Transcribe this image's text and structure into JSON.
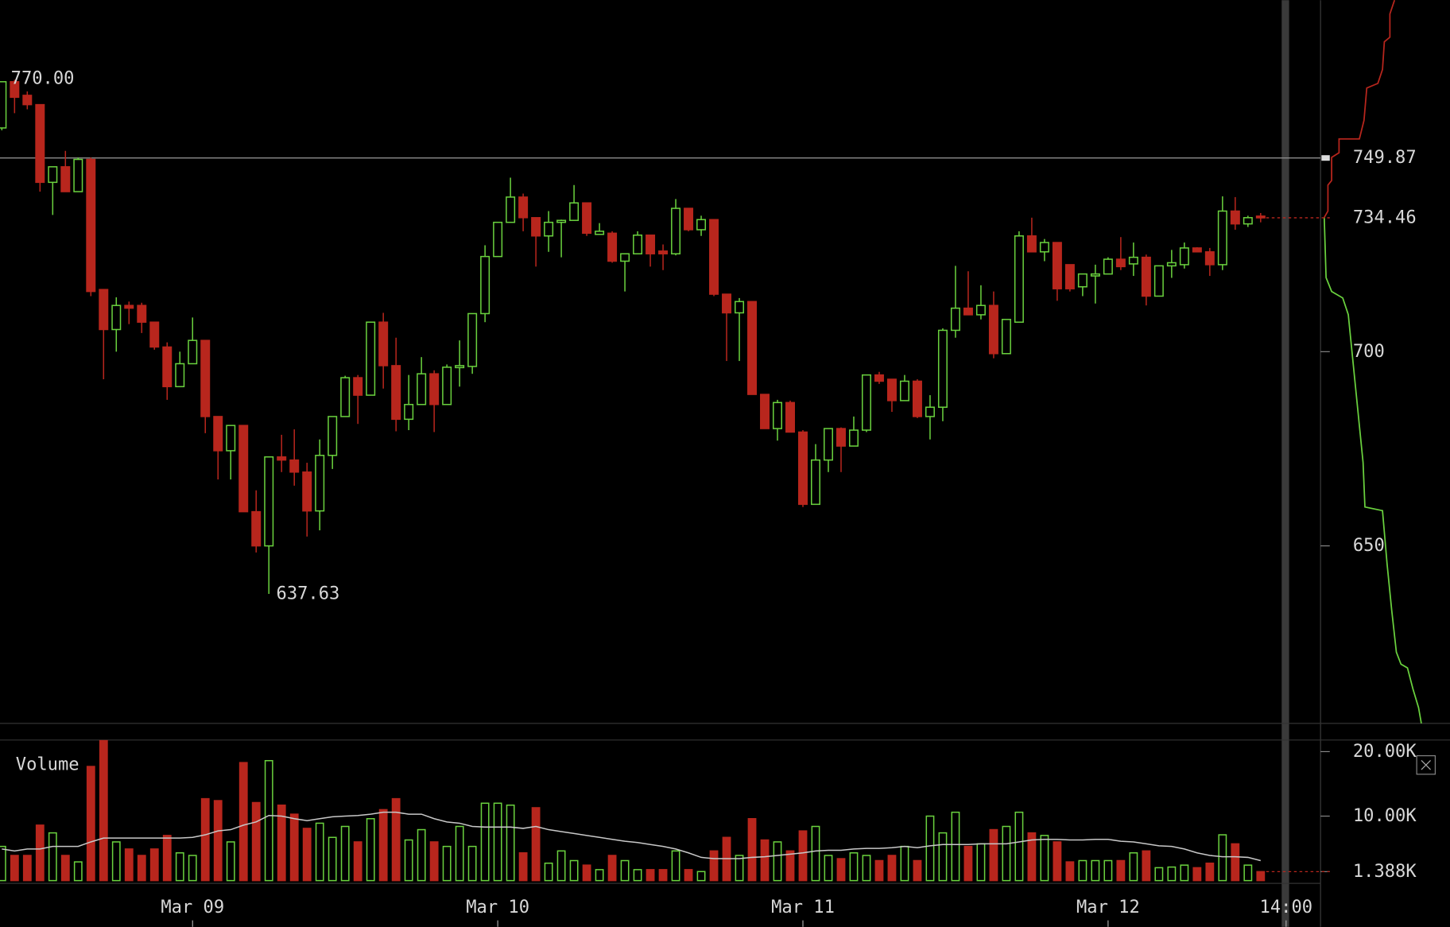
{
  "chart_data": [
    {
      "type": "candlestick",
      "x": [
        "Mar 08 09:00",
        "Mar 08 10:00",
        "Mar 08 11:00",
        "Mar 08 12:00",
        "Mar 08 13:00",
        "Mar 08 14:00",
        "Mar 08 15:00",
        "Mar 08 16:00",
        "Mar 08 17:00",
        "Mar 08 18:00",
        "Mar 08 19:00",
        "Mar 08 20:00",
        "Mar 08 21:00",
        "Mar 08 22:00",
        "Mar 08 23:00",
        "Mar 09 00:00",
        "Mar 09 01:00",
        "Mar 09 02:00",
        "Mar 09 03:00",
        "Mar 09 04:00",
        "Mar 09 05:00",
        "Mar 09 06:00",
        "Mar 09 07:00",
        "Mar 09 08:00",
        "Mar 09 09:00",
        "Mar 09 10:00",
        "Mar 09 11:00",
        "Mar 09 12:00",
        "Mar 09 13:00",
        "Mar 09 14:00",
        "Mar 09 15:00",
        "Mar 09 16:00",
        "Mar 09 17:00",
        "Mar 09 18:00",
        "Mar 09 19:00",
        "Mar 09 20:00",
        "Mar 09 21:00",
        "Mar 09 22:00",
        "Mar 09 23:00",
        "Mar 10 00:00",
        "Mar 10 01:00",
        "Mar 10 02:00",
        "Mar 10 03:00",
        "Mar 10 04:00",
        "Mar 10 05:00",
        "Mar 10 06:00",
        "Mar 10 07:00",
        "Mar 10 08:00",
        "Mar 10 09:00",
        "Mar 10 10:00",
        "Mar 10 11:00",
        "Mar 10 12:00",
        "Mar 10 13:00",
        "Mar 10 14:00",
        "Mar 10 15:00",
        "Mar 10 16:00",
        "Mar 10 17:00",
        "Mar 10 18:00",
        "Mar 10 19:00",
        "Mar 10 20:00",
        "Mar 10 21:00",
        "Mar 10 22:00",
        "Mar 10 23:00",
        "Mar 11 00:00",
        "Mar 11 01:00",
        "Mar 11 02:00",
        "Mar 11 03:00",
        "Mar 11 04:00",
        "Mar 11 05:00",
        "Mar 11 06:00",
        "Mar 11 07:00",
        "Mar 11 08:00",
        "Mar 11 09:00",
        "Mar 11 10:00",
        "Mar 11 11:00",
        "Mar 11 12:00",
        "Mar 11 13:00",
        "Mar 11 14:00",
        "Mar 11 15:00",
        "Mar 11 16:00",
        "Mar 11 17:00",
        "Mar 11 18:00",
        "Mar 11 19:00",
        "Mar 11 20:00",
        "Mar 11 21:00",
        "Mar 11 22:00",
        "Mar 11 23:00",
        "Mar 12 00:00",
        "Mar 12 01:00",
        "Mar 12 02:00",
        "Mar 12 03:00",
        "Mar 12 04:00",
        "Mar 12 05:00",
        "Mar 12 06:00",
        "Mar 12 07:00",
        "Mar 12 08:00",
        "Mar 12 09:00",
        "Mar 12 10:00",
        "Mar 12 11:00",
        "Mar 12 12:00"
      ],
      "open": [
        757.6,
        769.5,
        766,
        763.6,
        743.6,
        747.6,
        741.2,
        749.5,
        716,
        705.7,
        711.9,
        711.9,
        707.6,
        701.2,
        691,
        696.9,
        702.9,
        683.3,
        674.5,
        681,
        658.8,
        650,
        672.9,
        672.1,
        669,
        659,
        673.3,
        683.3,
        693.3,
        688.8,
        707.6,
        696.4,
        682.6,
        686.4,
        694.3,
        686.4,
        695.9,
        696.2,
        709.8,
        724.5,
        733.3,
        739.8,
        734.5,
        729.8,
        733.3,
        733.8,
        738.3,
        730.2,
        730.5,
        723.3,
        725.2,
        730,
        725.9,
        725.2,
        736.9,
        731.4,
        734,
        714.8,
        710,
        712.9,
        689,
        680.2,
        686.9,
        679.3,
        660.7,
        672.1,
        680.2,
        675.7,
        679.8,
        694,
        692.9,
        687.4,
        692.4,
        683.3,
        685.7,
        705.5,
        711.2,
        709.5,
        711.9,
        699.5,
        707.6,
        729.8,
        725.7,
        728.1,
        722.4,
        716.7,
        719.5,
        720,
        723.8,
        722.6,
        724.3,
        714.3,
        722.1,
        722.4,
        726.7,
        725.7,
        722.4,
        736.2,
        732.9,
        734.9
      ],
      "high": [
        769.5,
        770,
        767,
        763.6,
        747.6,
        751.7,
        750,
        750,
        716,
        714,
        712.9,
        712.6,
        707.6,
        702.4,
        700,
        708.8,
        702.9,
        683.3,
        681,
        681,
        664.3,
        672.9,
        678.6,
        680,
        671.4,
        677.4,
        683.3,
        693.8,
        694,
        707.6,
        710,
        703.6,
        694,
        698.6,
        695.2,
        696.7,
        702.9,
        709.8,
        727.4,
        733.3,
        744.8,
        740.7,
        734.5,
        736.2,
        734,
        742.9,
        738.3,
        733.1,
        731,
        725.2,
        731,
        730,
        727.6,
        739.3,
        736.9,
        735,
        734,
        714.8,
        713.8,
        712.9,
        689,
        687.6,
        687.4,
        679.8,
        676.2,
        680.2,
        680.5,
        683.3,
        694,
        694.8,
        692.9,
        694,
        692.9,
        688.8,
        706,
        722.1,
        720.7,
        717.1,
        715.5,
        708.3,
        731,
        734.5,
        729,
        728.1,
        722.4,
        720,
        722.4,
        724.3,
        729.5,
        728.1,
        725,
        722.1,
        726.2,
        728.1,
        726.9,
        726.7,
        740,
        739.8,
        735,
        735.7
      ],
      "low": [
        757,
        761.4,
        762.4,
        741.2,
        735.2,
        741.2,
        741.2,
        714.3,
        692.9,
        700,
        707.1,
        704.8,
        700.5,
        687.6,
        691,
        696.9,
        679,
        667.1,
        667.1,
        658.8,
        648.3,
        637.63,
        669,
        665.5,
        652.4,
        654,
        669.8,
        683.3,
        681.4,
        688.8,
        690.5,
        679.5,
        679.8,
        686.4,
        679.3,
        686.4,
        691,
        694.3,
        707.6,
        724.5,
        733.3,
        731,
        721.9,
        725.7,
        724.3,
        733.8,
        729.8,
        730.2,
        722.9,
        715.5,
        725.2,
        721.9,
        721,
        724.8,
        731,
        729.8,
        714.3,
        697.6,
        697.6,
        689,
        680.2,
        677.1,
        679.3,
        660,
        660.7,
        669,
        669,
        675.7,
        679.3,
        691.7,
        684.5,
        687.4,
        682.9,
        677.4,
        682.1,
        703.6,
        709.5,
        708.3,
        698.3,
        699.5,
        707.6,
        725.7,
        723.3,
        713.1,
        715.5,
        714.3,
        712.4,
        720,
        721,
        719.5,
        711.9,
        714.3,
        719,
        721.4,
        725.7,
        719.5,
        721,
        731.4,
        732.1,
        733.3
      ],
      "close": [
        769.5,
        765.5,
        763.6,
        743.6,
        747.6,
        741.2,
        749.5,
        715.5,
        705.7,
        711.9,
        711.2,
        707.6,
        701.2,
        691,
        696.9,
        702.9,
        683.3,
        674.5,
        681,
        658.8,
        650,
        672.9,
        672.1,
        669,
        659,
        673.3,
        683.3,
        693.3,
        688.8,
        707.6,
        696.4,
        682.6,
        686.4,
        694.3,
        686.4,
        696,
        696.4,
        709.8,
        724.5,
        733.3,
        739.8,
        734.5,
        729.8,
        733.3,
        733.8,
        738.3,
        730.5,
        731,
        723.3,
        725.2,
        730,
        725.2,
        725.2,
        736.9,
        731.4,
        734,
        714.8,
        710,
        712.9,
        689,
        680.2,
        686.9,
        679.3,
        660.7,
        672.1,
        680.2,
        675.7,
        679.8,
        694,
        692.4,
        687.4,
        692.4,
        683.3,
        685.7,
        705.5,
        711.2,
        709.5,
        711.9,
        699.5,
        708.3,
        729.8,
        725.7,
        728.1,
        716.2,
        716.2,
        720,
        720,
        723.8,
        721.9,
        724.3,
        714.3,
        722.1,
        722.9,
        726.7,
        725.7,
        722.4,
        736.2,
        732.9,
        734.5,
        734.46
      ],
      "up_color": "#6ad13e",
      "down_color": "#b8261d",
      "xlim": [
        "Mar 08 09:00",
        "Mar 12 17:00"
      ],
      "xticks": [
        {
          "value": "Mar 09 00:00",
          "label": "Mar 09"
        },
        {
          "value": "Mar 10 00:00",
          "label": "Mar 10"
        },
        {
          "value": "Mar 11 00:00",
          "label": "Mar 11"
        },
        {
          "value": "Mar 12 00:00",
          "label": "Mar 12"
        },
        {
          "value": "Mar 12 14:00",
          "label": "14:00"
        }
      ],
      "ylim": [
        604.3,
        790.5
      ],
      "yticks": [
        650,
        700
      ],
      "horizontal_lines": [
        {
          "value": 749.87,
          "color": "#8c8c8c",
          "style": "solid"
        },
        {
          "value": 734.46,
          "color": "#b8261d",
          "style": "dashed"
        }
      ],
      "annotations": [
        {
          "value": 770,
          "label": "770.00"
        },
        {
          "value": 637.63,
          "label": "637.63"
        }
      ]
    },
    {
      "type": "bar",
      "title": "Volume",
      "values": [
        5300,
        3900,
        3900,
        8600,
        7400,
        3900,
        2900,
        17700,
        21700,
        6000,
        4900,
        3900,
        4900,
        7000,
        4300,
        3900,
        12700,
        12400,
        6000,
        18300,
        12100,
        18600,
        11700,
        10300,
        8100,
        8900,
        6700,
        8400,
        6000,
        9600,
        11000,
        12700,
        6300,
        7900,
        6000,
        5300,
        8400,
        5300,
        12000,
        12000,
        11700,
        4300,
        11300,
        2700,
        4600,
        3100,
        2400,
        1700,
        3900,
        3100,
        1700,
        1700,
        1700,
        4600,
        1700,
        1400,
        4600,
        6700,
        3900,
        9600,
        6300,
        6000,
        4600,
        7700,
        8400,
        3900,
        3400,
        4300,
        3900,
        3100,
        3900,
        5300,
        3100,
        10000,
        7400,
        10600,
        5300,
        5700,
        7900,
        8400,
        10600,
        7400,
        7000,
        6000,
        2900,
        3100,
        3100,
        3100,
        3100,
        4300,
        4600,
        2000,
        2100,
        2400,
        2000,
        2700,
        7100,
        5700,
        2400,
        1388
      ],
      "average": [
        4900,
        4600,
        4900,
        4900,
        5300,
        5300,
        5300,
        6000,
        6600,
        6600,
        6600,
        6600,
        6600,
        6600,
        6600,
        6700,
        7100,
        7700,
        7900,
        8600,
        9100,
        10100,
        10000,
        9600,
        9300,
        9600,
        9900,
        10000,
        10100,
        10300,
        10600,
        10600,
        10300,
        10300,
        9600,
        9100,
        8900,
        8400,
        8300,
        8300,
        8300,
        8100,
        8400,
        7900,
        7600,
        7300,
        7000,
        6700,
        6400,
        6100,
        5900,
        5600,
        5300,
        4900,
        4300,
        3600,
        3400,
        3400,
        3400,
        3600,
        3700,
        3900,
        4100,
        4300,
        4600,
        4700,
        4700,
        4900,
        5000,
        5000,
        5100,
        5300,
        5100,
        5400,
        5600,
        5600,
        5600,
        5700,
        5700,
        5700,
        6000,
        6300,
        6400,
        6400,
        6300,
        6300,
        6400,
        6400,
        6100,
        6000,
        5700,
        5400,
        5300,
        4900,
        4300,
        3900,
        3700,
        3700,
        3600,
        3100
      ],
      "average_color": "#c8c8c8",
      "ylim": [
        0,
        21800
      ],
      "yticks": [
        {
          "value": 1388,
          "label": "1.388K"
        },
        {
          "value": 10000,
          "label": "10.00K"
        },
        {
          "value": 20000,
          "label": "20.00K"
        }
      ]
    }
  ]
}
